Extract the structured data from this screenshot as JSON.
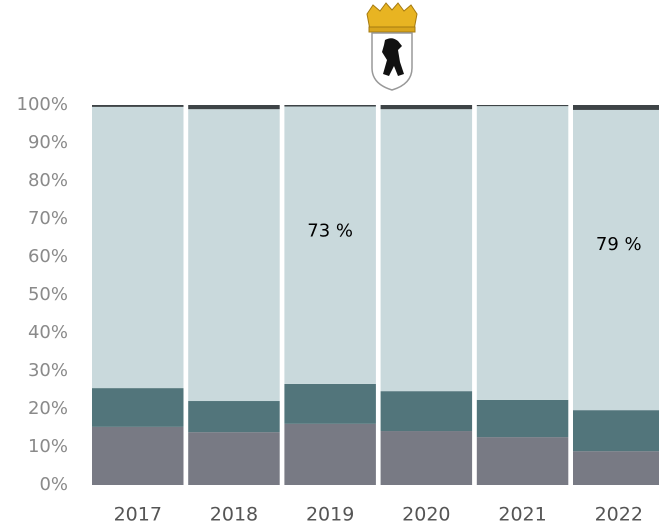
{
  "chart_data": {
    "type": "stacked-bar",
    "categories": [
      "2017",
      "2018",
      "2019",
      "2020",
      "2021",
      "2022"
    ],
    "series": [
      {
        "color": "#787a84",
        "values": [
          15.3,
          13.9,
          16.1,
          14.2,
          12.6,
          8.9
        ]
      },
      {
        "color": "#52757b",
        "values": [
          10.2,
          8.2,
          10.5,
          10.5,
          9.8,
          10.8
        ]
      },
      {
        "color": "#c9d9dc",
        "values": [
          74.0,
          76.8,
          73.0,
          74.2,
          77.3,
          79.0
        ],
        "value_labels": [
          null,
          null,
          "73 %",
          null,
          null,
          "79 %"
        ]
      },
      {
        "color": "#3e4447",
        "values": [
          0.5,
          1.1,
          0.4,
          1.1,
          0.3,
          1.3
        ]
      }
    ],
    "ylim": [
      0,
      100
    ],
    "yticks": [
      {
        "value": 0,
        "label": "0%"
      },
      {
        "value": 10,
        "label": "10%"
      },
      {
        "value": 20,
        "label": "20%"
      },
      {
        "value": 30,
        "label": "30%"
      },
      {
        "value": 40,
        "label": "40%"
      },
      {
        "value": 50,
        "label": "50%"
      },
      {
        "value": 60,
        "label": "60%"
      },
      {
        "value": 70,
        "label": "70%"
      },
      {
        "value": 80,
        "label": "80%"
      },
      {
        "value": 90,
        "label": "90%"
      },
      {
        "value": {
          "value": 100,
          "label": "100%"
        }
      }
    ]
  }
}
